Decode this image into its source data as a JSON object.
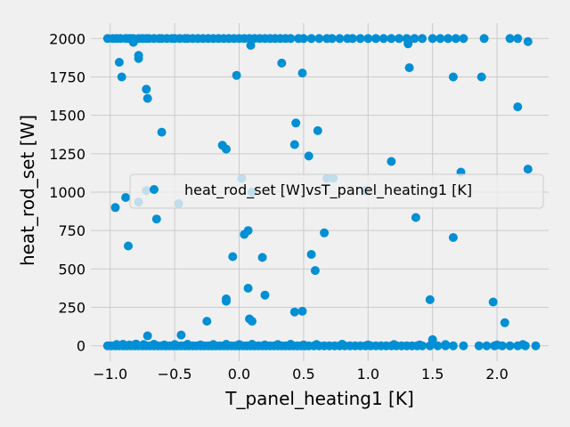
{
  "chart_data": {
    "type": "scatter",
    "xlabel": "T_panel_heating1 [K]",
    "ylabel": "heat_rod_set [W]",
    "xlim": [
      -1.15,
      2.4
    ],
    "ylim": [
      -100,
      2100
    ],
    "x_ticks": [
      -1.0,
      -0.5,
      0.0,
      0.5,
      1.0,
      1.5,
      2.0
    ],
    "x_tick_labels": [
      "−1.0",
      "−0.5",
      "0.0",
      "0.5",
      "1.0",
      "1.5",
      "2.0"
    ],
    "y_ticks": [
      0,
      250,
      500,
      750,
      1000,
      1250,
      1500,
      1750,
      2000
    ],
    "y_tick_labels": [
      "0",
      "250",
      "500",
      "750",
      "1000",
      "1250",
      "1500",
      "1750",
      "2000"
    ],
    "grid": true,
    "legend": {
      "position": "center",
      "entries": [
        "heat_rod_set [W]vsT_panel_heating1 [K]"
      ]
    },
    "colors": {
      "marker": "#008fd5",
      "background": "#f0f0f0",
      "grid": "#cbcbcb"
    },
    "series": [
      {
        "name": "heat_rod_set [W]vsT_panel_heating1 [K]",
        "points": [
          [
            -1.02,
            2000
          ],
          [
            -0.98,
            2000
          ],
          [
            -0.95,
            2000
          ],
          [
            -0.92,
            2000
          ],
          [
            -0.88,
            2000
          ],
          [
            -0.86,
            2000
          ],
          [
            -0.84,
            2000
          ],
          [
            -0.82,
            2000
          ],
          [
            -0.78,
            2000
          ],
          [
            -0.75,
            2000
          ],
          [
            -0.72,
            2000
          ],
          [
            -0.7,
            2000
          ],
          [
            -0.66,
            2000
          ],
          [
            -0.62,
            2000
          ],
          [
            -0.6,
            2000
          ],
          [
            -0.56,
            2000
          ],
          [
            -0.52,
            2000
          ],
          [
            -0.5,
            2000
          ],
          [
            -0.46,
            2000
          ],
          [
            -0.42,
            2000
          ],
          [
            -0.4,
            2000
          ],
          [
            -0.36,
            2000
          ],
          [
            -0.32,
            2000
          ],
          [
            -0.28,
            2000
          ],
          [
            -0.24,
            2000
          ],
          [
            -0.2,
            2000
          ],
          [
            -0.16,
            2000
          ],
          [
            -0.12,
            2000
          ],
          [
            -0.08,
            2000
          ],
          [
            -0.04,
            2000
          ],
          [
            0.0,
            2000
          ],
          [
            0.04,
            2000
          ],
          [
            0.08,
            2000
          ],
          [
            0.12,
            2000
          ],
          [
            0.16,
            2000
          ],
          [
            0.2,
            2000
          ],
          [
            0.24,
            2000
          ],
          [
            0.28,
            2000
          ],
          [
            0.32,
            2000
          ],
          [
            0.36,
            2000
          ],
          [
            0.4,
            2000
          ],
          [
            0.46,
            2000
          ],
          [
            0.5,
            2000
          ],
          [
            0.56,
            2000
          ],
          [
            0.62,
            2000
          ],
          [
            0.68,
            2000
          ],
          [
            0.72,
            2000
          ],
          [
            0.78,
            2000
          ],
          [
            0.84,
            2000
          ],
          [
            0.88,
            2000
          ],
          [
            0.94,
            2000
          ],
          [
            1.0,
            2000
          ],
          [
            1.06,
            2000
          ],
          [
            1.12,
            2000
          ],
          [
            1.18,
            2000
          ],
          [
            1.24,
            2000
          ],
          [
            1.3,
            2000
          ],
          [
            1.36,
            2000
          ],
          [
            1.42,
            2000
          ],
          [
            1.5,
            2000
          ],
          [
            1.56,
            2000
          ],
          [
            1.62,
            2000
          ],
          [
            1.68,
            2000
          ],
          [
            1.74,
            2000
          ],
          [
            1.9,
            2000
          ],
          [
            2.1,
            2000
          ],
          [
            2.16,
            2000
          ],
          [
            -0.82,
            1975
          ],
          [
            0.09,
            1955
          ],
          [
            1.31,
            1965
          ],
          [
            2.24,
            1980
          ],
          [
            -0.93,
            1845
          ],
          [
            -0.78,
            1890
          ],
          [
            -0.78,
            1870
          ],
          [
            0.33,
            1840
          ],
          [
            1.32,
            1810
          ],
          [
            -0.91,
            1750
          ],
          [
            -0.02,
            1760
          ],
          [
            0.49,
            1775
          ],
          [
            1.66,
            1750
          ],
          [
            1.88,
            1750
          ],
          [
            -0.72,
            1670
          ],
          [
            -0.71,
            1610
          ],
          [
            2.16,
            1555
          ],
          [
            0.44,
            1450
          ],
          [
            -0.6,
            1390
          ],
          [
            0.61,
            1400
          ],
          [
            -0.13,
            1305
          ],
          [
            0.43,
            1310
          ],
          [
            -0.1,
            1280
          ],
          [
            0.54,
            1235
          ],
          [
            1.18,
            1200
          ],
          [
            1.72,
            1130
          ],
          [
            2.24,
            1150
          ],
          [
            0.02,
            1090
          ],
          [
            0.68,
            1090
          ],
          [
            0.73,
            1090
          ],
          [
            -0.72,
            1010
          ],
          [
            0.1,
            1000
          ],
          [
            0.98,
            1010
          ],
          [
            -0.88,
            965
          ],
          [
            -0.96,
            900
          ],
          [
            -0.78,
            935
          ],
          [
            -0.47,
            925
          ],
          [
            -0.64,
            825
          ],
          [
            1.37,
            835
          ],
          [
            0.07,
            750
          ],
          [
            0.04,
            725
          ],
          [
            0.66,
            735
          ],
          [
            1.66,
            705
          ],
          [
            -0.86,
            650
          ],
          [
            0.56,
            595
          ],
          [
            -0.05,
            580
          ],
          [
            0.18,
            575
          ],
          [
            0.59,
            490
          ],
          [
            0.07,
            375
          ],
          [
            0.2,
            330
          ],
          [
            -0.1,
            305
          ],
          [
            -0.1,
            290
          ],
          [
            1.48,
            300
          ],
          [
            1.97,
            285
          ],
          [
            0.43,
            220
          ],
          [
            0.49,
            225
          ],
          [
            0.08,
            175
          ],
          [
            0.1,
            160
          ],
          [
            -0.25,
            160
          ],
          [
            2.06,
            150
          ],
          [
            -0.45,
            70
          ],
          [
            -0.71,
            65
          ],
          [
            1.5,
            40
          ],
          [
            -1.02,
            0
          ],
          [
            -0.99,
            0
          ],
          [
            -0.96,
            0
          ],
          [
            -0.93,
            0
          ],
          [
            -0.9,
            0
          ],
          [
            -0.87,
            0
          ],
          [
            -0.84,
            0
          ],
          [
            -0.81,
            0
          ],
          [
            -0.78,
            0
          ],
          [
            -0.75,
            0
          ],
          [
            -0.72,
            0
          ],
          [
            -0.69,
            0
          ],
          [
            -0.66,
            0
          ],
          [
            -0.63,
            0
          ],
          [
            -0.6,
            0
          ],
          [
            -0.57,
            0
          ],
          [
            -0.54,
            0
          ],
          [
            -0.51,
            0
          ],
          [
            -0.48,
            0
          ],
          [
            -0.45,
            0
          ],
          [
            -0.42,
            0
          ],
          [
            -0.39,
            0
          ],
          [
            -0.36,
            0
          ],
          [
            -0.33,
            0
          ],
          [
            -0.3,
            0
          ],
          [
            -0.27,
            0
          ],
          [
            -0.24,
            0
          ],
          [
            -0.21,
            0
          ],
          [
            -0.18,
            0
          ],
          [
            -0.15,
            0
          ],
          [
            -0.12,
            0
          ],
          [
            -0.09,
            0
          ],
          [
            -0.06,
            0
          ],
          [
            -0.03,
            0
          ],
          [
            0.0,
            0
          ],
          [
            0.03,
            0
          ],
          [
            0.06,
            0
          ],
          [
            0.09,
            0
          ],
          [
            0.12,
            0
          ],
          [
            0.15,
            0
          ],
          [
            0.18,
            0
          ],
          [
            0.21,
            0
          ],
          [
            0.24,
            0
          ],
          [
            0.27,
            0
          ],
          [
            0.3,
            0
          ],
          [
            0.33,
            0
          ],
          [
            0.36,
            0
          ],
          [
            0.39,
            0
          ],
          [
            0.42,
            0
          ],
          [
            0.45,
            0
          ],
          [
            0.48,
            0
          ],
          [
            0.51,
            0
          ],
          [
            0.54,
            0
          ],
          [
            0.58,
            0
          ],
          [
            0.62,
            0
          ],
          [
            0.66,
            0
          ],
          [
            0.7,
            0
          ],
          [
            0.74,
            0
          ],
          [
            0.78,
            0
          ],
          [
            0.82,
            0
          ],
          [
            0.86,
            0
          ],
          [
            0.9,
            0
          ],
          [
            0.94,
            0
          ],
          [
            0.98,
            0
          ],
          [
            1.02,
            0
          ],
          [
            1.06,
            0
          ],
          [
            1.1,
            0
          ],
          [
            1.14,
            0
          ],
          [
            1.18,
            0
          ],
          [
            1.22,
            0
          ],
          [
            1.26,
            0
          ],
          [
            1.3,
            0
          ],
          [
            1.34,
            0
          ],
          [
            1.38,
            0
          ],
          [
            1.42,
            0
          ],
          [
            1.48,
            0
          ],
          [
            1.54,
            0
          ],
          [
            1.6,
            0
          ],
          [
            1.66,
            0
          ],
          [
            1.74,
            0
          ],
          [
            1.86,
            0
          ],
          [
            1.92,
            0
          ],
          [
            1.98,
            0
          ],
          [
            2.04,
            0
          ],
          [
            2.1,
            0
          ],
          [
            2.16,
            0
          ],
          [
            2.22,
            0
          ],
          [
            2.3,
            0
          ],
          [
            -0.95,
            8
          ],
          [
            -0.9,
            10
          ],
          [
            -0.85,
            6
          ],
          [
            -0.8,
            12
          ],
          [
            -0.74,
            8
          ],
          [
            -0.66,
            10
          ],
          [
            -0.58,
            6
          ],
          [
            -0.5,
            8
          ],
          [
            -0.4,
            10
          ],
          [
            -0.3,
            6
          ],
          [
            -0.2,
            8
          ],
          [
            -0.1,
            10
          ],
          [
            0.0,
            8
          ],
          [
            0.1,
            10
          ],
          [
            0.2,
            6
          ],
          [
            0.3,
            8
          ],
          [
            0.4,
            10
          ],
          [
            0.5,
            6
          ],
          [
            0.6,
            8
          ],
          [
            0.8,
            10
          ],
          [
            1.0,
            6
          ],
          [
            1.2,
            8
          ],
          [
            1.4,
            6
          ],
          [
            1.6,
            8
          ],
          [
            2.0,
            6
          ],
          [
            2.2,
            8
          ]
        ]
      }
    ]
  }
}
